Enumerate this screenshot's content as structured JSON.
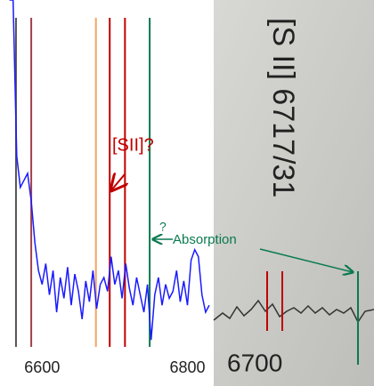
{
  "chart_data": {
    "type": "line",
    "x": [
      6555,
      6560,
      6565,
      6570,
      6575,
      6580,
      6585,
      6590,
      6595,
      6600,
      6605,
      6610,
      6615,
      6620,
      6625,
      6630,
      6635,
      6640,
      6645,
      6650,
      6655,
      6660,
      6665,
      6670,
      6675,
      6680,
      6685,
      6690,
      6695,
      6700,
      6705,
      6710,
      6715,
      6720,
      6725,
      6730,
      6735,
      6740,
      6745,
      6750,
      6755,
      6760,
      6765,
      6770,
      6775,
      6780,
      6785,
      6790,
      6795,
      6800,
      6805,
      6810,
      6815,
      6820,
      6825,
      6830
    ],
    "series": [
      {
        "color": "#1a1aff",
        "values": [
          100,
          100,
          55,
          46,
          48,
          50,
          42,
          30,
          22,
          18,
          24,
          15,
          22,
          10,
          20,
          14,
          23,
          12,
          21,
          16,
          8,
          19,
          13,
          22,
          11,
          18,
          20,
          16,
          26,
          18,
          22,
          14,
          24,
          17,
          12,
          20,
          15,
          10,
          18,
          2,
          15,
          20,
          12,
          18,
          14,
          16,
          22,
          13,
          19,
          12,
          25,
          28,
          26,
          15,
          10,
          12
        ]
      }
    ],
    "xlim": [
      6542,
      6830
    ],
    "ylim": [
      0,
      100
    ],
    "xticks": [
      6600,
      6800
    ],
    "lines": [
      {
        "x": 6564,
        "color": "#555555"
      },
      {
        "x": 6585,
        "color": "#a0404a"
      },
      {
        "x": 6674,
        "color": "#f4a460"
      },
      {
        "x": 6693,
        "color": "#c00000"
      },
      {
        "x": 6714,
        "color": "#c00000"
      },
      {
        "x": 6748,
        "color": "#0a7a50"
      }
    ],
    "annotations": [
      {
        "text": "[SII]?",
        "color": "#c00000"
      },
      {
        "text": "?",
        "color": "#0a7a50"
      },
      {
        "text": "Absorption",
        "color": "#0a7a50"
      }
    ]
  },
  "photo": {
    "rotated_label": "[S II] 6717/31",
    "axis_label": "6700"
  }
}
